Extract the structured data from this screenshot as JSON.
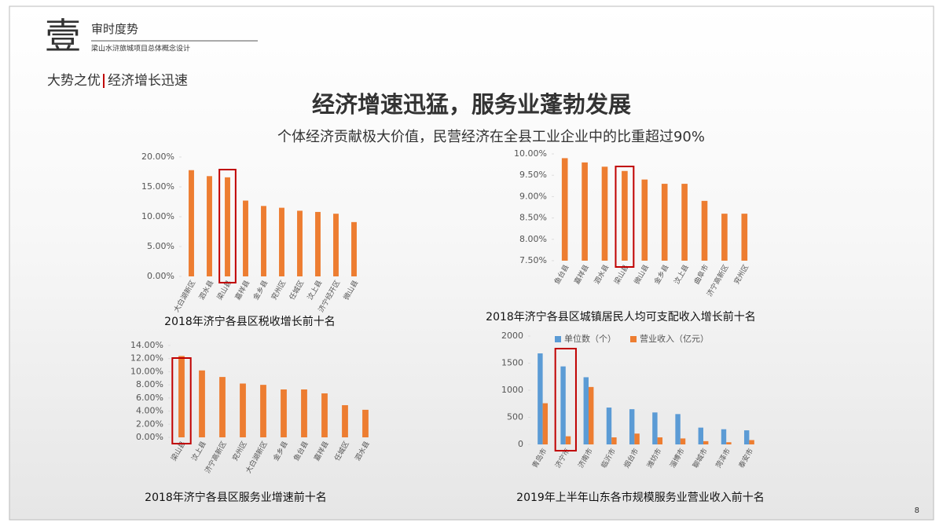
{
  "header": {
    "number": "壹",
    "title": "审时度势",
    "subtitle": "梁山水浒旅城项目总体概念设计"
  },
  "section": {
    "main": "大势之优",
    "sub": "经济增长迅速"
  },
  "headline": "经济增速迅猛，服务业蓬勃发展",
  "subheadline": "个体经济贡献极大价值，民营经济在全县工业企业中的比重超过90%",
  "page_number": "8",
  "chart_data": [
    {
      "type": "bar",
      "title": "2018年济宁各县区税收增长前十名",
      "categories": [
        "大白湖新区",
        "泗水县",
        "梁山县",
        "嘉祥县",
        "金乡县",
        "兖州区",
        "任城区",
        "汶上县",
        "济宁经开区",
        "微山县"
      ],
      "values": [
        17.8,
        16.8,
        16.6,
        12.7,
        11.8,
        11.5,
        11.0,
        10.8,
        10.5,
        9.1
      ],
      "color": "#ED7D31",
      "highlight": 2,
      "highlight_color": "#C00000",
      "ylim": [
        0,
        20
      ],
      "yticks": [
        {
          "value": 0,
          "label": "0.00%"
        },
        {
          "value": 5,
          "label": "5.00%"
        },
        {
          "value": 10,
          "label": "10.00%"
        },
        {
          "value": 15,
          "label": "15.00%"
        },
        {
          "value": 20,
          "label": "20.00%"
        }
      ]
    },
    {
      "type": "bar",
      "title": "2018年济宁各县区城镇居民人均可支配收入增长前十名",
      "categories": [
        "鱼台县",
        "嘉祥县",
        "泗水县",
        "梁山县",
        "微山县",
        "金乡县",
        "汶上县",
        "曲阜市",
        "济宁高新区",
        "兖州区"
      ],
      "values": [
        9.9,
        9.8,
        9.7,
        9.6,
        9.4,
        9.3,
        9.3,
        8.9,
        8.6,
        8.6
      ],
      "color": "#ED7D31",
      "highlight": 3,
      "highlight_color": "#C00000",
      "ylim": [
        7.5,
        10
      ],
      "yticks": [
        {
          "value": 7.5,
          "label": "7.50%"
        },
        {
          "value": 8,
          "label": "8.00%"
        },
        {
          "value": 8.5,
          "label": "8.50%"
        },
        {
          "value": 9,
          "label": "9.00%"
        },
        {
          "value": 9.5,
          "label": "9.50%"
        },
        {
          "value": 10,
          "label": "10.00%"
        }
      ]
    },
    {
      "type": "bar",
      "title": "2018年济宁各县区服务业增速前十名",
      "categories": [
        "梁山县",
        "汶上县",
        "济宁高新区",
        "兖州区",
        "大白湖新区",
        "金乡县",
        "鱼台县",
        "嘉祥县",
        "任城区",
        "泗水县"
      ],
      "values": [
        12.4,
        10.2,
        9.2,
        8.2,
        8.0,
        7.3,
        7.3,
        6.7,
        4.9,
        4.2
      ],
      "color": "#ED7D31",
      "highlight": 0,
      "highlight_color": "#C00000",
      "ylim": [
        0,
        14
      ],
      "yticks": [
        {
          "value": 0,
          "label": "0.00%"
        },
        {
          "value": 2,
          "label": "2.00%"
        },
        {
          "value": 4,
          "label": "4.00%"
        },
        {
          "value": 6,
          "label": "6.00%"
        },
        {
          "value": 8,
          "label": "8.00%"
        },
        {
          "value": 10,
          "label": "10.00%"
        },
        {
          "value": 12,
          "label": "12.00%"
        },
        {
          "value": 14,
          "label": "14.00%"
        }
      ]
    },
    {
      "type": "bar",
      "title": "2019年上半年山东各市规模服务业营业收入前十名",
      "categories": [
        "青岛市",
        "济宁市",
        "济南市",
        "临沂市",
        "烟台市",
        "潍坊市",
        "淄博市",
        "聊城市",
        "菏泽市",
        "泰安市"
      ],
      "series": [
        {
          "name": "单位数（个）",
          "color": "#5B9BD5",
          "values": [
            1680,
            1440,
            1240,
            680,
            650,
            590,
            560,
            310,
            280,
            260
          ]
        },
        {
          "name": "营业收入（亿元）",
          "color": "#ED7D31",
          "values": [
            760,
            150,
            1060,
            130,
            200,
            130,
            110,
            60,
            40,
            80
          ]
        }
      ],
      "highlight": 1,
      "highlight_color": "#C00000",
      "ylim": [
        0,
        2000
      ],
      "yticks": [
        0,
        500,
        1000,
        1500,
        2000
      ],
      "legend": "top"
    }
  ]
}
